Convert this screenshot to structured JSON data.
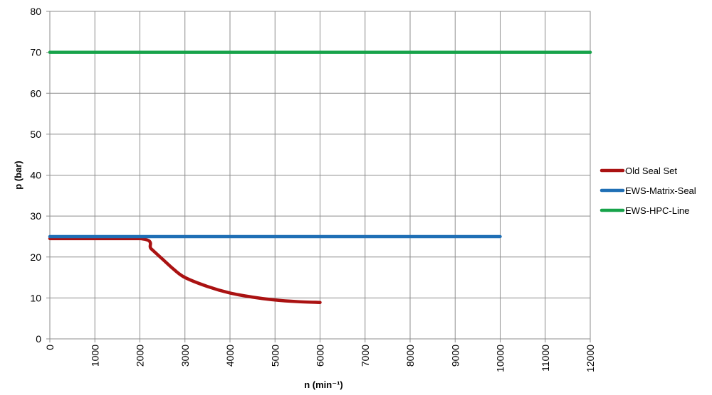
{
  "chart_data": {
    "type": "line",
    "title": "",
    "xlabel": "n (min⁻¹)",
    "ylabel": "p (bar)",
    "xlim": [
      0,
      12000
    ],
    "ylim": [
      0,
      80
    ],
    "xticks": [
      0,
      1000,
      2000,
      3000,
      4000,
      5000,
      6000,
      7000,
      8000,
      9000,
      10000,
      11000,
      12000
    ],
    "yticks": [
      0,
      10,
      20,
      30,
      40,
      50,
      60,
      70,
      80
    ],
    "grid": true,
    "legend_position": "right",
    "series": [
      {
        "name": "Old Seal Set",
        "color": "#aa1212",
        "x": [
          0,
          2000,
          2250,
          2500,
          2750,
          3000,
          3500,
          4000,
          4500,
          5000,
          5500,
          6000
        ],
        "y": [
          24.5,
          24.5,
          22,
          19.5,
          17,
          15,
          12.8,
          11.2,
          10.2,
          9.5,
          9.1,
          8.9
        ]
      },
      {
        "name": "EWS-Matrix-Seal",
        "color": "#1f6fb5",
        "x": [
          0,
          10000
        ],
        "y": [
          25,
          25
        ]
      },
      {
        "name": "EWS-HPC-Line",
        "color": "#17a34a",
        "x": [
          0,
          12000
        ],
        "y": [
          70,
          70
        ]
      }
    ]
  }
}
